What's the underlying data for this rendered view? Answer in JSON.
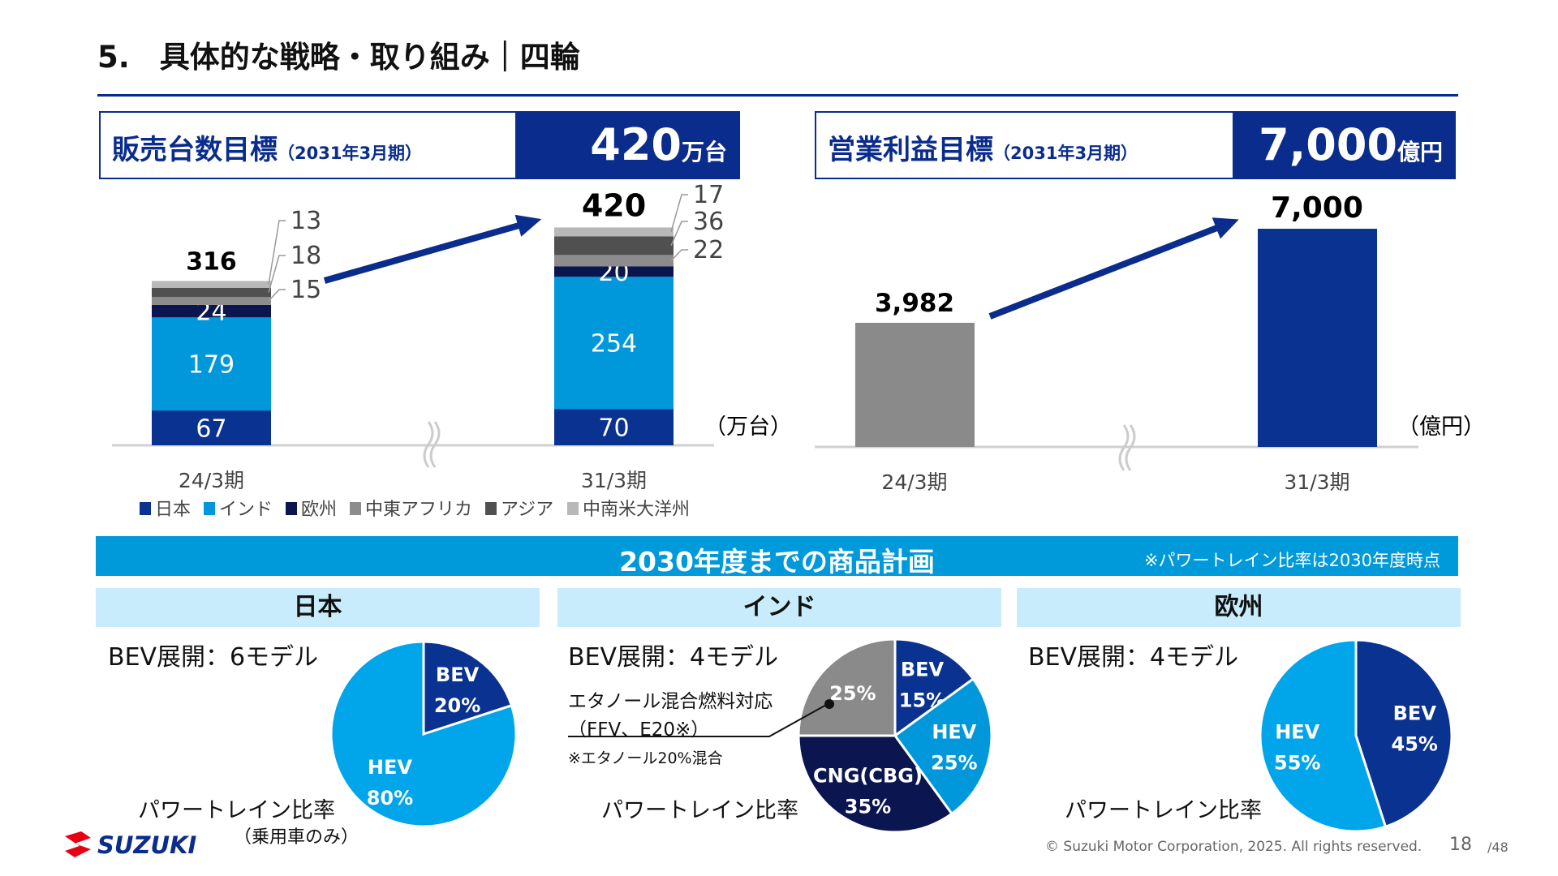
{
  "title": "5.　具体的な戦略・取り組み｜四輪",
  "kpi_sales": {
    "label": "販売台数目標",
    "period": "（2031年3月期）",
    "value": "420",
    "unit": "万台"
  },
  "kpi_profit": {
    "label": "営業利益目標",
    "period": "（2031年3月期）",
    "value": "7,000",
    "unit": "億円"
  },
  "chart_data": [
    {
      "type": "bar",
      "stacked": true,
      "categories": [
        "24/3期",
        "31/3期"
      ],
      "unit_label": "（万台）",
      "series": [
        {
          "name": "日本",
          "color": "#0a3290",
          "values": [
            67,
            70
          ]
        },
        {
          "name": "インド",
          "color": "#0098db",
          "values": [
            179,
            254
          ]
        },
        {
          "name": "欧州",
          "color": "#0b1650",
          "values": [
            24,
            20
          ]
        },
        {
          "name": "中東アフリカ",
          "color": "#8c8c8c",
          "values": [
            15,
            22
          ]
        },
        {
          "name": "アジア",
          "color": "#505050",
          "values": [
            18,
            36
          ]
        },
        {
          "name": "中南米大洋州",
          "color": "#b8b8b8",
          "values": [
            13,
            17
          ]
        }
      ],
      "totals": [
        316,
        420
      ]
    },
    {
      "type": "bar",
      "categories": [
        "24/3期",
        "31/3期"
      ],
      "values": [
        3982,
        7000
      ],
      "labels": [
        "3,982",
        "7,000"
      ],
      "colors": [
        "#8a8a8a",
        "#0a3290"
      ],
      "unit_label": "（億円）"
    },
    {
      "type": "pie",
      "region": "日本",
      "slices": [
        {
          "label": "BEV",
          "pct": "20%",
          "value": 20,
          "color": "#0a3290"
        },
        {
          "label": "HEV",
          "pct": "80%",
          "value": 80,
          "color": "#00a5ea"
        }
      ]
    },
    {
      "type": "pie",
      "region": "インド",
      "slices": [
        {
          "label": "BEV",
          "pct": "15%",
          "value": 15,
          "color": "#0a3290"
        },
        {
          "label": "HEV",
          "pct": "25%",
          "value": 25,
          "color": "#0098db"
        },
        {
          "label": "CNG(CBG)",
          "pct": "35%",
          "value": 35,
          "color": "#0b1650"
        },
        {
          "label": "",
          "pct": "25%",
          "value": 25,
          "color": "#8a8a8a"
        }
      ]
    },
    {
      "type": "pie",
      "region": "欧州",
      "slices": [
        {
          "label": "BEV",
          "pct": "45%",
          "value": 45,
          "color": "#0a3290"
        },
        {
          "label": "HEV",
          "pct": "55%",
          "value": 55,
          "color": "#00a5ea"
        }
      ]
    }
  ],
  "plan": {
    "banner": "2030年度までの商品計画",
    "note": "※パワートレイン比率は2030年度時点",
    "regions": [
      {
        "name": "日本",
        "bev": "BEV展開：6モデル",
        "ratio": "パワートレイン比率",
        "sub": "（乗用車のみ）"
      },
      {
        "name": "インド",
        "bev": "BEV展開：4モデル",
        "ratio": "パワートレイン比率",
        "ethanol": "エタノール混合燃料対応",
        "ethanol2": "（FFV、E20※）",
        "ethanol_note": "※エタノール20%混合"
      },
      {
        "name": "欧州",
        "bev": "BEV展開：4モデル",
        "ratio": "パワートレイン比率"
      }
    ]
  },
  "footer": {
    "logo": "SUZUKI",
    "copyright": "© Suzuki Motor Corporation, 2025. All rights reserved.",
    "page": "18",
    "total": "/48"
  }
}
